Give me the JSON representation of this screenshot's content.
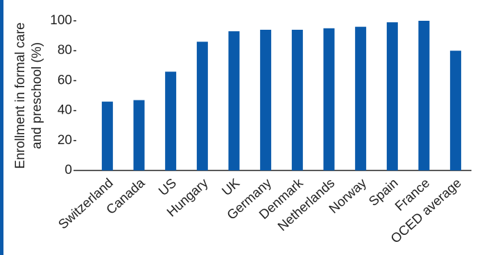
{
  "chart_data": {
    "type": "bar",
    "ylabel": [
      "Enrollment in formal care",
      "and preschool (%)"
    ],
    "categories": [
      "Switzerland",
      "Canada",
      "US",
      "Hungary",
      "UK",
      "Germany",
      "Denmark",
      "Netherlands",
      "Norway",
      "Spain",
      "France",
      "OCED average"
    ],
    "values": [
      46,
      47,
      66,
      86,
      93,
      94,
      94,
      95,
      96,
      99,
      100,
      80
    ],
    "color": "#0a5aab",
    "ylim": [
      0,
      100
    ],
    "yticks": [
      0,
      20,
      40,
      60,
      80,
      100
    ],
    "grid": false
  }
}
